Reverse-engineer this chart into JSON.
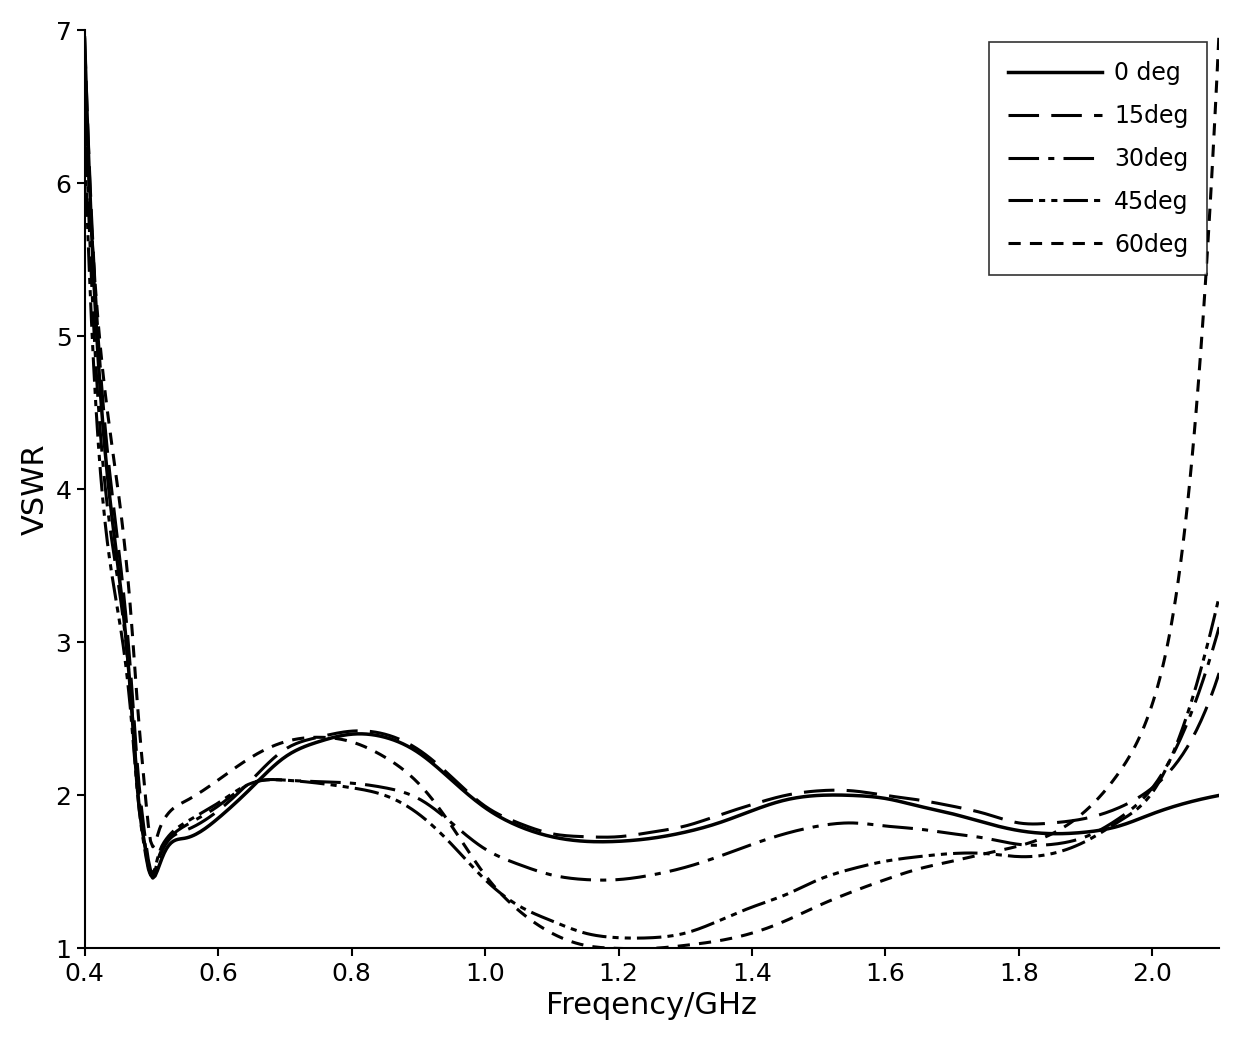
{
  "title": "",
  "xlabel": "Freqency/GHz",
  "ylabel": "VSWR",
  "xlim": [
    0.4,
    2.1
  ],
  "ylim": [
    1.0,
    7.0
  ],
  "xticks": [
    0.4,
    0.6,
    0.8,
    1.0,
    1.2,
    1.4,
    1.6,
    1.8,
    2.0
  ],
  "yticks": [
    1,
    2,
    3,
    4,
    5,
    6,
    7
  ],
  "background_color": "#ffffff",
  "line_color": "#000000",
  "series": [
    {
      "label": "0 deg",
      "x": [
        0.4,
        0.45,
        0.47,
        0.48,
        0.49,
        0.5,
        0.51,
        0.52,
        0.55,
        0.6,
        0.65,
        0.7,
        0.75,
        0.8,
        0.85,
        0.9,
        0.95,
        1.0,
        1.05,
        1.1,
        1.15,
        1.2,
        1.25,
        1.3,
        1.35,
        1.4,
        1.45,
        1.5,
        1.55,
        1.6,
        1.65,
        1.7,
        1.75,
        1.8,
        1.85,
        1.9,
        1.95,
        2.0,
        2.05,
        2.1
      ],
      "y": [
        6.95,
        3.5,
        2.6,
        2.0,
        1.68,
        1.47,
        1.52,
        1.63,
        1.72,
        1.85,
        2.05,
        2.25,
        2.35,
        2.4,
        2.38,
        2.28,
        2.1,
        1.92,
        1.8,
        1.73,
        1.7,
        1.7,
        1.72,
        1.76,
        1.82,
        1.9,
        1.97,
        2.0,
        2.0,
        1.98,
        1.93,
        1.88,
        1.82,
        1.77,
        1.75,
        1.76,
        1.8,
        1.88,
        1.95,
        2.0
      ]
    },
    {
      "label": "15deg",
      "x": [
        0.4,
        0.45,
        0.47,
        0.48,
        0.49,
        0.5,
        0.51,
        0.52,
        0.55,
        0.6,
        0.65,
        0.7,
        0.75,
        0.8,
        0.85,
        0.9,
        0.95,
        1.0,
        1.05,
        1.1,
        1.15,
        1.2,
        1.25,
        1.3,
        1.35,
        1.4,
        1.45,
        1.5,
        1.55,
        1.6,
        1.65,
        1.7,
        1.75,
        1.8,
        1.85,
        1.9,
        1.95,
        2.0,
        2.05,
        2.1
      ],
      "y": [
        6.95,
        3.65,
        2.75,
        2.15,
        1.75,
        1.5,
        1.57,
        1.67,
        1.77,
        1.9,
        2.1,
        2.3,
        2.38,
        2.42,
        2.4,
        2.3,
        2.12,
        1.93,
        1.82,
        1.75,
        1.73,
        1.73,
        1.76,
        1.8,
        1.87,
        1.94,
        2.0,
        2.03,
        2.03,
        2.0,
        1.97,
        1.93,
        1.88,
        1.82,
        1.82,
        1.85,
        1.92,
        2.05,
        2.3,
        2.8
      ]
    },
    {
      "label": "30deg",
      "x": [
        0.4,
        0.45,
        0.47,
        0.48,
        0.49,
        0.5,
        0.51,
        0.52,
        0.55,
        0.6,
        0.65,
        0.7,
        0.75,
        0.8,
        0.85,
        0.9,
        0.95,
        1.0,
        1.05,
        1.1,
        1.15,
        1.2,
        1.25,
        1.3,
        1.35,
        1.4,
        1.45,
        1.5,
        1.55,
        1.6,
        1.65,
        1.7,
        1.75,
        1.8,
        1.85,
        1.9,
        1.95,
        2.0,
        2.05,
        2.1
      ],
      "y": [
        6.6,
        3.4,
        2.62,
        2.05,
        1.7,
        1.47,
        1.58,
        1.68,
        1.8,
        1.93,
        2.08,
        2.1,
        2.09,
        2.08,
        2.05,
        1.98,
        1.82,
        1.65,
        1.55,
        1.48,
        1.45,
        1.45,
        1.48,
        1.53,
        1.6,
        1.68,
        1.75,
        1.8,
        1.82,
        1.8,
        1.78,
        1.75,
        1.72,
        1.68,
        1.68,
        1.73,
        1.85,
        2.05,
        2.45,
        3.1
      ]
    },
    {
      "label": "45deg",
      "x": [
        0.4,
        0.45,
        0.47,
        0.48,
        0.49,
        0.5,
        0.51,
        0.52,
        0.55,
        0.6,
        0.65,
        0.7,
        0.75,
        0.8,
        0.85,
        0.9,
        0.95,
        1.0,
        1.05,
        1.1,
        1.15,
        1.2,
        1.25,
        1.3,
        1.35,
        1.4,
        1.45,
        1.5,
        1.55,
        1.6,
        1.65,
        1.7,
        1.75,
        1.8,
        1.85,
        1.9,
        1.95,
        2.0,
        2.05,
        2.1
      ],
      "y": [
        6.3,
        3.2,
        2.5,
        1.98,
        1.65,
        1.47,
        1.6,
        1.7,
        1.82,
        1.95,
        2.08,
        2.1,
        2.08,
        2.05,
        2.0,
        1.88,
        1.68,
        1.45,
        1.28,
        1.18,
        1.1,
        1.07,
        1.07,
        1.1,
        1.18,
        1.27,
        1.35,
        1.45,
        1.52,
        1.57,
        1.6,
        1.62,
        1.62,
        1.6,
        1.62,
        1.7,
        1.83,
        2.02,
        2.5,
        3.3
      ]
    },
    {
      "label": "60deg",
      "x": [
        0.4,
        0.45,
        0.47,
        0.48,
        0.49,
        0.5,
        0.51,
        0.52,
        0.55,
        0.6,
        0.65,
        0.7,
        0.75,
        0.8,
        0.85,
        0.9,
        0.95,
        1.0,
        1.05,
        1.1,
        1.15,
        1.2,
        1.25,
        1.3,
        1.35,
        1.4,
        1.45,
        1.5,
        1.55,
        1.6,
        1.65,
        1.7,
        1.75,
        1.8,
        1.85,
        1.9,
        1.95,
        2.0,
        2.05,
        2.1
      ],
      "y": [
        6.6,
        4.0,
        3.15,
        2.55,
        2.05,
        1.68,
        1.75,
        1.85,
        1.96,
        2.1,
        2.25,
        2.35,
        2.38,
        2.35,
        2.25,
        2.08,
        1.8,
        1.48,
        1.25,
        1.1,
        1.02,
        1.0,
        1.0,
        1.02,
        1.05,
        1.1,
        1.18,
        1.28,
        1.37,
        1.45,
        1.52,
        1.57,
        1.62,
        1.67,
        1.75,
        1.9,
        2.15,
        2.6,
        3.8,
        7.0
      ]
    }
  ],
  "legend_loc": "upper right",
  "xlabel_fontsize": 22,
  "ylabel_fontsize": 22,
  "tick_fontsize": 18,
  "legend_fontsize": 17
}
